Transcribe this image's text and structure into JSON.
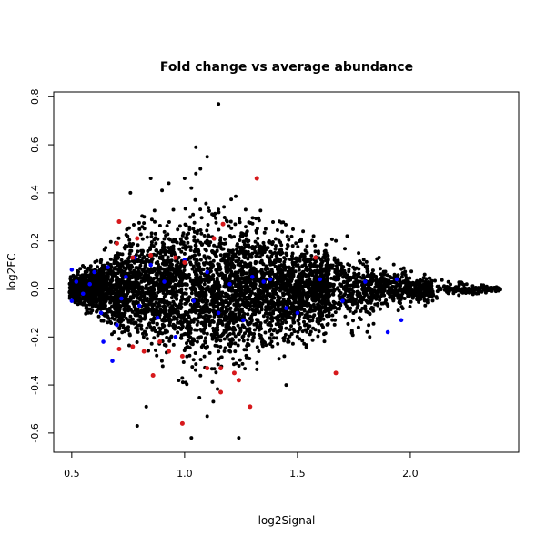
{
  "chart_data": {
    "type": "scatter",
    "title": "Fold change vs average abundance",
    "xlabel": "log2Signal",
    "ylabel": "log2FC",
    "xlim": [
      0.42,
      2.48
    ],
    "ylim": [
      -0.68,
      0.82
    ],
    "xticks": [
      "0.5",
      "1.0",
      "1.5",
      "2.0"
    ],
    "yticks": [
      "-0.6",
      "-0.4",
      "-0.2",
      "0.0",
      "0.2",
      "0.4",
      "0.6",
      "0.8"
    ],
    "grid": false,
    "legend": "none",
    "colors": {
      "background_points": "#000000",
      "blue_points": "#0000ff",
      "red_points": "#d7191c",
      "frame": "#000000"
    },
    "series": [
      {
        "color": "#000000",
        "density_envelope": {
          "x": [
            0.5,
            0.6,
            0.7,
            0.8,
            0.9,
            1.0,
            1.1,
            1.2,
            1.3,
            1.4,
            1.5,
            1.6,
            1.7,
            1.8,
            1.9,
            2.0,
            2.1,
            2.2,
            2.3,
            2.4
          ],
          "y_upper": [
            0.07,
            0.14,
            0.23,
            0.3,
            0.35,
            0.4,
            0.42,
            0.4,
            0.36,
            0.32,
            0.27,
            0.24,
            0.2,
            0.15,
            0.12,
            0.09,
            0.06,
            0.04,
            0.02,
            0.01
          ],
          "y_lower": [
            -0.07,
            -0.16,
            -0.27,
            -0.36,
            -0.42,
            -0.46,
            -0.48,
            -0.46,
            -0.42,
            -0.38,
            -0.33,
            -0.29,
            -0.25,
            -0.2,
            -0.15,
            -0.1,
            -0.07,
            -0.05,
            -0.03,
            -0.01
          ]
        },
        "outliers": [
          {
            "x": 1.15,
            "y": 0.77
          },
          {
            "x": 1.05,
            "y": 0.59
          },
          {
            "x": 1.1,
            "y": 0.55
          },
          {
            "x": 1.07,
            "y": 0.5
          },
          {
            "x": 1.05,
            "y": 0.48
          },
          {
            "x": 1.0,
            "y": 0.46
          },
          {
            "x": 0.85,
            "y": 0.46
          },
          {
            "x": 0.93,
            "y": 0.44
          },
          {
            "x": 1.03,
            "y": 0.42
          },
          {
            "x": 0.76,
            "y": 0.4
          },
          {
            "x": 0.9,
            "y": 0.41
          },
          {
            "x": 0.79,
            "y": -0.57
          },
          {
            "x": 1.03,
            "y": -0.62
          },
          {
            "x": 1.24,
            "y": -0.62
          },
          {
            "x": 0.83,
            "y": -0.49
          },
          {
            "x": 1.1,
            "y": -0.53
          },
          {
            "x": 1.45,
            "y": -0.4
          },
          {
            "x": 2.37,
            "y": 0.0
          },
          {
            "x": 2.33,
            "y": 0.005
          },
          {
            "x": 2.3,
            "y": -0.01
          },
          {
            "x": 1.82,
            "y": -0.2
          },
          {
            "x": 1.77,
            "y": -0.16
          },
          {
            "x": 1.72,
            "y": 0.22
          },
          {
            "x": 1.67,
            "y": 0.2
          }
        ]
      },
      {
        "color": "#0000ff",
        "points": [
          {
            "x": 0.5,
            "y": 0.08
          },
          {
            "x": 0.52,
            "y": 0.03
          },
          {
            "x": 0.5,
            "y": -0.05
          },
          {
            "x": 0.55,
            "y": -0.02
          },
          {
            "x": 0.6,
            "y": 0.07
          },
          {
            "x": 0.63,
            "y": -0.1
          },
          {
            "x": 0.66,
            "y": 0.09
          },
          {
            "x": 0.64,
            "y": -0.22
          },
          {
            "x": 0.7,
            "y": -0.15
          },
          {
            "x": 0.72,
            "y": -0.04
          },
          {
            "x": 0.74,
            "y": 0.05
          },
          {
            "x": 0.78,
            "y": 0.13
          },
          {
            "x": 0.8,
            "y": -0.07
          },
          {
            "x": 0.85,
            "y": 0.1
          },
          {
            "x": 0.88,
            "y": -0.12
          },
          {
            "x": 0.91,
            "y": 0.03
          },
          {
            "x": 0.96,
            "y": -0.2
          },
          {
            "x": 1.0,
            "y": 0.12
          },
          {
            "x": 1.04,
            "y": -0.05
          },
          {
            "x": 1.1,
            "y": 0.07
          },
          {
            "x": 1.15,
            "y": -0.1
          },
          {
            "x": 1.2,
            "y": 0.02
          },
          {
            "x": 1.26,
            "y": -0.13
          },
          {
            "x": 1.3,
            "y": 0.05
          },
          {
            "x": 1.38,
            "y": 0.04
          },
          {
            "x": 1.45,
            "y": -0.08
          },
          {
            "x": 1.5,
            "y": -0.1
          },
          {
            "x": 1.6,
            "y": 0.04
          },
          {
            "x": 1.7,
            "y": -0.05
          },
          {
            "x": 1.8,
            "y": 0.03
          },
          {
            "x": 1.9,
            "y": -0.18
          },
          {
            "x": 1.96,
            "y": -0.13
          },
          {
            "x": 1.94,
            "y": 0.04
          },
          {
            "x": 0.58,
            "y": 0.02
          },
          {
            "x": 0.68,
            "y": -0.3
          },
          {
            "x": 1.35,
            "y": 0.03
          }
        ]
      },
      {
        "color": "#d7191c",
        "points": [
          {
            "x": 1.32,
            "y": 0.46
          },
          {
            "x": 0.71,
            "y": 0.28
          },
          {
            "x": 1.17,
            "y": 0.27
          },
          {
            "x": 1.13,
            "y": 0.21
          },
          {
            "x": 0.79,
            "y": 0.21
          },
          {
            "x": 0.7,
            "y": 0.19
          },
          {
            "x": 0.85,
            "y": 0.14
          },
          {
            "x": 0.96,
            "y": 0.13
          },
          {
            "x": 0.77,
            "y": 0.13
          },
          {
            "x": 1.0,
            "y": 0.11
          },
          {
            "x": 1.58,
            "y": 0.13
          },
          {
            "x": 0.77,
            "y": -0.24
          },
          {
            "x": 0.71,
            "y": -0.25
          },
          {
            "x": 0.89,
            "y": -0.22
          },
          {
            "x": 0.93,
            "y": -0.26
          },
          {
            "x": 0.82,
            "y": -0.26
          },
          {
            "x": 0.99,
            "y": -0.28
          },
          {
            "x": 0.86,
            "y": -0.36
          },
          {
            "x": 1.1,
            "y": -0.33
          },
          {
            "x": 1.16,
            "y": -0.33
          },
          {
            "x": 1.22,
            "y": -0.35
          },
          {
            "x": 1.24,
            "y": -0.38
          },
          {
            "x": 1.67,
            "y": -0.35
          },
          {
            "x": 1.16,
            "y": -0.43
          },
          {
            "x": 1.29,
            "y": -0.49
          },
          {
            "x": 0.99,
            "y": -0.56
          }
        ]
      }
    ]
  }
}
